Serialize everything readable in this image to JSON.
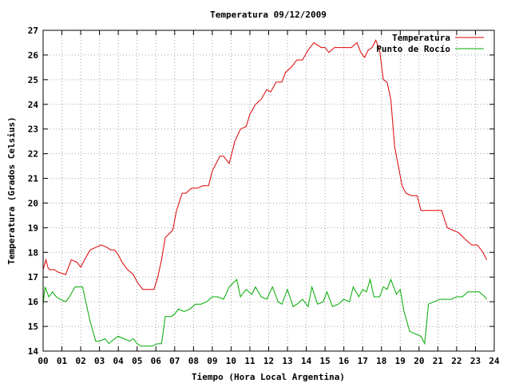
{
  "chart_data": {
    "type": "line",
    "title": "Temperatura 09/12/2009",
    "xlabel": "Tiempo (Hora Local Argentina)",
    "ylabel": "Temperatura (Grados Celsius)",
    "xlim": [
      0,
      24
    ],
    "ylim": [
      14,
      27
    ],
    "x_ticks": [
      "00",
      "01",
      "02",
      "03",
      "04",
      "05",
      "06",
      "07",
      "08",
      "09",
      "10",
      "11",
      "12",
      "13",
      "14",
      "15",
      "16",
      "17",
      "18",
      "19",
      "20",
      "21",
      "22",
      "23",
      "24"
    ],
    "y_ticks": [
      "14",
      "15",
      "16",
      "17",
      "18",
      "19",
      "20",
      "21",
      "22",
      "23",
      "24",
      "25",
      "26",
      "27"
    ],
    "grid": true,
    "legend_position": "top-right",
    "series": [
      {
        "name": "Temperatura",
        "color": "#dd0000",
        "x": [
          0,
          0.15,
          0.25,
          0.35,
          0.6,
          0.8,
          1.2,
          1.5,
          1.8,
          2.0,
          2.2,
          2.5,
          2.8,
          3.1,
          3.4,
          3.6,
          3.8,
          4.0,
          4.2,
          4.5,
          4.8,
          5.0,
          5.3,
          5.6,
          5.9,
          6.1,
          6.3,
          6.5,
          6.9,
          7.1,
          7.4,
          7.6,
          7.9,
          8.2,
          8.5,
          8.8,
          9.0,
          9.2,
          9.4,
          9.6,
          9.9,
          10.2,
          10.5,
          10.8,
          11.0,
          11.3,
          11.6,
          11.9,
          12.1,
          12.4,
          12.7,
          12.9,
          13.2,
          13.5,
          13.8,
          14.1,
          14.4,
          14.6,
          14.8,
          15.0,
          15.2,
          15.5,
          15.8,
          16.1,
          16.4,
          16.7,
          16.9,
          17.1,
          17.3,
          17.5,
          17.7,
          17.9,
          18.1,
          18.3,
          18.5,
          18.7,
          18.9,
          19.1,
          19.3,
          19.6,
          19.9,
          20.1,
          20.4,
          20.8,
          21.2,
          21.5,
          21.8,
          22.1,
          22.5,
          22.8,
          23.1,
          23.4,
          23.6
        ],
        "values": [
          17.3,
          17.7,
          17.4,
          17.3,
          17.3,
          17.2,
          17.1,
          17.7,
          17.6,
          17.4,
          17.7,
          18.1,
          18.2,
          18.3,
          18.2,
          18.1,
          18.1,
          17.9,
          17.6,
          17.3,
          17.1,
          16.8,
          16.5,
          16.5,
          16.5,
          17.0,
          17.7,
          18.6,
          18.9,
          19.7,
          20.4,
          20.4,
          20.6,
          20.6,
          20.7,
          20.7,
          21.3,
          21.6,
          21.9,
          21.9,
          21.6,
          22.5,
          23.0,
          23.1,
          23.6,
          24.0,
          24.2,
          24.6,
          24.5,
          24.9,
          24.9,
          25.3,
          25.5,
          25.8,
          25.8,
          26.2,
          26.5,
          26.4,
          26.3,
          26.3,
          26.1,
          26.3,
          26.3,
          26.3,
          26.3,
          26.5,
          26.1,
          25.9,
          26.2,
          26.3,
          26.6,
          26.2,
          25.0,
          24.9,
          24.2,
          22.3,
          21.5,
          20.7,
          20.4,
          20.3,
          20.3,
          19.7,
          19.7,
          19.7,
          19.7,
          19.0,
          18.9,
          18.8,
          18.5,
          18.3,
          18.3,
          18.0,
          17.7
        ]
      },
      {
        "name": "Punto de Rocío",
        "color": "#00aa00",
        "x": [
          0,
          0.1,
          0.3,
          0.5,
          0.7,
          0.9,
          1.2,
          1.4,
          1.7,
          1.9,
          2.1,
          2.3,
          2.5,
          2.8,
          3.0,
          3.3,
          3.5,
          3.8,
          4.0,
          4.3,
          4.6,
          4.8,
          5.0,
          5.2,
          5.4,
          5.6,
          5.8,
          6.1,
          6.3,
          6.5,
          6.8,
          7.0,
          7.2,
          7.5,
          7.8,
          8.1,
          8.4,
          8.7,
          9.0,
          9.3,
          9.6,
          9.9,
          10.3,
          10.5,
          10.8,
          11.1,
          11.3,
          11.6,
          11.9,
          12.2,
          12.5,
          12.7,
          13.0,
          13.3,
          13.5,
          13.8,
          14.1,
          14.3,
          14.6,
          14.9,
          15.1,
          15.4,
          15.7,
          16.0,
          16.3,
          16.5,
          16.8,
          17.0,
          17.2,
          17.4,
          17.6,
          17.9,
          18.1,
          18.3,
          18.5,
          18.8,
          19.0,
          19.2,
          19.5,
          19.8,
          20.1,
          20.3,
          20.5,
          20.8,
          21.1,
          21.4,
          21.7,
          22.0,
          22.3,
          22.6,
          22.9,
          23.2,
          23.5,
          23.6
        ],
        "values": [
          15.9,
          16.6,
          16.2,
          16.4,
          16.2,
          16.1,
          16.0,
          16.2,
          16.6,
          16.6,
          16.6,
          15.9,
          15.2,
          14.4,
          14.4,
          14.5,
          14.3,
          14.5,
          14.6,
          14.5,
          14.4,
          14.5,
          14.3,
          14.2,
          14.2,
          14.2,
          14.2,
          14.3,
          14.3,
          15.4,
          15.4,
          15.5,
          15.7,
          15.6,
          15.7,
          15.9,
          15.9,
          16.0,
          16.2,
          16.2,
          16.1,
          16.6,
          16.9,
          16.2,
          16.5,
          16.3,
          16.6,
          16.2,
          16.1,
          16.6,
          16.0,
          15.9,
          16.5,
          15.8,
          15.9,
          16.1,
          15.8,
          16.6,
          15.9,
          16.0,
          16.4,
          15.8,
          15.9,
          16.1,
          16.0,
          16.6,
          16.2,
          16.5,
          16.4,
          16.9,
          16.2,
          16.2,
          16.6,
          16.5,
          16.9,
          16.3,
          16.5,
          15.6,
          14.8,
          14.7,
          14.6,
          14.3,
          15.9,
          16.0,
          16.1,
          16.1,
          16.1,
          16.2,
          16.2,
          16.4,
          16.4,
          16.4,
          16.2,
          16.1
        ]
      }
    ]
  }
}
